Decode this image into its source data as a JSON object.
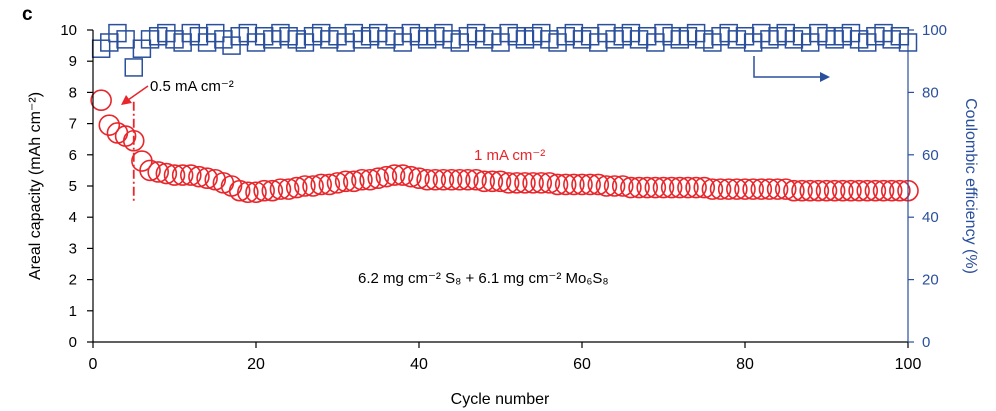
{
  "chart_data": {
    "type": "scatter",
    "panel_label": "c",
    "xlabel": "Cycle number",
    "ylabel": "Areal capacity (mAh cm⁻²)",
    "y2label": "Coulombic efficiency (%)",
    "xlim": [
      0,
      100
    ],
    "ylim": [
      0,
      10
    ],
    "y2lim": [
      0,
      100
    ],
    "xticks": [
      0,
      20,
      40,
      60,
      80,
      100
    ],
    "yticks": [
      0,
      1,
      2,
      3,
      4,
      5,
      6,
      7,
      8,
      9,
      10
    ],
    "y2ticks": [
      0,
      20,
      40,
      60,
      80,
      100
    ],
    "annotations": {
      "low_rate": "0.5 mA cm⁻²",
      "high_rate": "1 mA cm⁻²",
      "loading": "6.2 mg cm⁻² S₈ + 6.1 mg cm⁻² Mo₆S₈"
    },
    "rate_switch_cycle": 5,
    "series": [
      {
        "name": "Areal capacity",
        "axis": "left",
        "marker": "open-circle",
        "color": "#e8262b",
        "x": [
          1,
          2,
          3,
          4,
          5,
          6,
          7,
          8,
          9,
          10,
          11,
          12,
          13,
          14,
          15,
          16,
          17,
          18,
          19,
          20,
          21,
          22,
          23,
          24,
          25,
          26,
          27,
          28,
          29,
          30,
          31,
          32,
          33,
          34,
          35,
          36,
          37,
          38,
          39,
          40,
          41,
          42,
          43,
          44,
          45,
          46,
          47,
          48,
          49,
          50,
          51,
          52,
          53,
          54,
          55,
          56,
          57,
          58,
          59,
          60,
          61,
          62,
          63,
          64,
          65,
          66,
          67,
          68,
          69,
          70,
          71,
          72,
          73,
          74,
          75,
          76,
          77,
          78,
          79,
          80,
          81,
          82,
          83,
          84,
          85,
          86,
          87,
          88,
          89,
          90,
          91,
          92,
          93,
          94,
          95,
          96,
          97,
          98,
          99,
          100
        ],
        "values": [
          7.75,
          6.95,
          6.7,
          6.6,
          6.45,
          5.8,
          5.5,
          5.45,
          5.4,
          5.35,
          5.35,
          5.35,
          5.3,
          5.25,
          5.2,
          5.1,
          5.0,
          4.85,
          4.8,
          4.8,
          4.85,
          4.85,
          4.9,
          4.9,
          4.95,
          5.0,
          5.0,
          5.05,
          5.05,
          5.1,
          5.15,
          5.15,
          5.2,
          5.2,
          5.25,
          5.3,
          5.35,
          5.35,
          5.3,
          5.25,
          5.2,
          5.2,
          5.2,
          5.2,
          5.2,
          5.2,
          5.2,
          5.15,
          5.15,
          5.15,
          5.1,
          5.1,
          5.1,
          5.1,
          5.1,
          5.1,
          5.05,
          5.05,
          5.05,
          5.05,
          5.05,
          5.05,
          5.0,
          5.0,
          5.0,
          4.95,
          4.95,
          4.95,
          4.95,
          4.95,
          4.95,
          4.95,
          4.95,
          4.95,
          4.95,
          4.9,
          4.9,
          4.9,
          4.9,
          4.9,
          4.9,
          4.9,
          4.9,
          4.9,
          4.9,
          4.85,
          4.85,
          4.85,
          4.85,
          4.85,
          4.85,
          4.85,
          4.85,
          4.85,
          4.85,
          4.85,
          4.85,
          4.85,
          4.85,
          4.85
        ]
      },
      {
        "name": "Coulombic efficiency",
        "axis": "right",
        "marker": "open-square",
        "color": "#2a4f9c",
        "x": [
          1,
          2,
          3,
          4,
          5,
          6,
          7,
          8,
          9,
          10,
          11,
          12,
          13,
          14,
          15,
          16,
          17,
          18,
          19,
          20,
          21,
          22,
          23,
          24,
          25,
          26,
          27,
          28,
          29,
          30,
          31,
          32,
          33,
          34,
          35,
          36,
          37,
          38,
          39,
          40,
          41,
          42,
          43,
          44,
          45,
          46,
          47,
          48,
          49,
          50,
          51,
          52,
          53,
          54,
          55,
          56,
          57,
          58,
          59,
          60,
          61,
          62,
          63,
          64,
          65,
          66,
          67,
          68,
          69,
          70,
          71,
          72,
          73,
          74,
          75,
          76,
          77,
          78,
          79,
          80,
          81,
          82,
          83,
          84,
          85,
          86,
          87,
          88,
          89,
          90,
          91,
          92,
          93,
          94,
          95,
          96,
          97,
          98,
          99,
          100
        ],
        "values": [
          94,
          96,
          99,
          97,
          88,
          94,
          97,
          98,
          99,
          97,
          96,
          99,
          98,
          96,
          99,
          97,
          95,
          98,
          99,
          96,
          98,
          97,
          99,
          98,
          97,
          96,
          98,
          99,
          97,
          98,
          96,
          99,
          97,
          98,
          99,
          97,
          98,
          96,
          99,
          98,
          97,
          98,
          99,
          97,
          96,
          98,
          99,
          97,
          98,
          96,
          99,
          98,
          97,
          98,
          99,
          97,
          96,
          98,
          99,
          97,
          98,
          96,
          99,
          97,
          98,
          99,
          97,
          98,
          96,
          99,
          98,
          97,
          98,
          99,
          97,
          96,
          98,
          99,
          97,
          98,
          96,
          99,
          97,
          98,
          99,
          97,
          98,
          96,
          99,
          98,
          97,
          98,
          99,
          97,
          96,
          98,
          99,
          97,
          98,
          96
        ]
      }
    ]
  }
}
